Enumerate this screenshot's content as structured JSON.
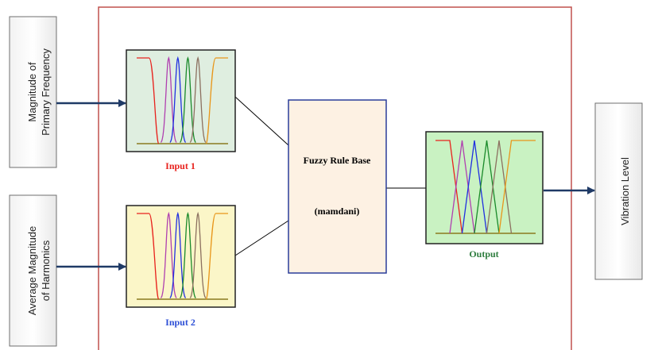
{
  "inputs": [
    {
      "label_line1": "Magnitude of",
      "label_line2": "Primary Frequency"
    },
    {
      "label_line1": "Average Magnitude",
      "label_line2": "of Harmonics"
    }
  ],
  "output_label": "Vibration Level",
  "panels": {
    "input1": {
      "caption": "Input 1",
      "caption_color": "#e8221d",
      "bg": "#dfeee0"
    },
    "input2": {
      "caption": "Input 2",
      "caption_color": "#2d4fd6",
      "bg": "#fbf6c8"
    },
    "output": {
      "caption": "Output",
      "caption_color": "#2e7d3e",
      "bg": "#c9f2c2"
    }
  },
  "rule_base": {
    "title": "Fuzzy Rule Base",
    "subtitle": "(mamdani)",
    "bg": "#fdf1e3"
  },
  "colors": {
    "outer_frame": "#c0504d",
    "arrow": "#1f3a66",
    "mf_lines": [
      "#e8221d",
      "#b040b0",
      "#2030e0",
      "#1a8a2a",
      "#8c7060",
      "#e8961a"
    ]
  }
}
